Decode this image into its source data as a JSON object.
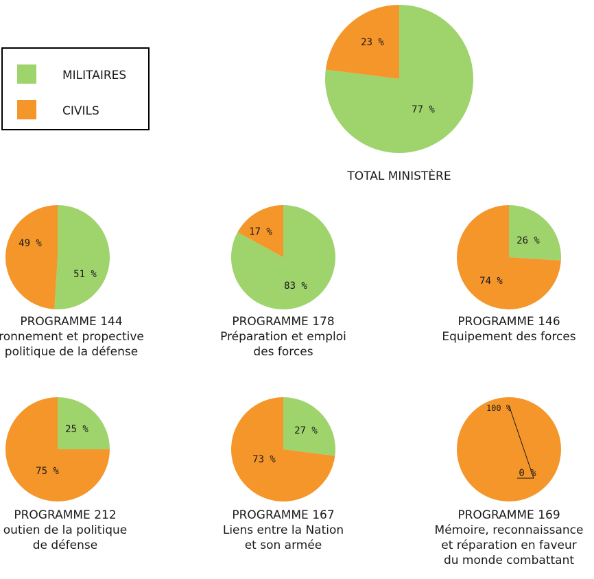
{
  "legend": {
    "items": [
      {
        "label": "MILITAIRES",
        "color": "#9fd36c"
      },
      {
        "label": "CIVILS",
        "color": "#f5962a"
      }
    ]
  },
  "chart_data": [
    {
      "type": "pie",
      "labels": [
        "MILITAIRES",
        "CIVILS"
      ],
      "values": [
        77,
        23
      ],
      "value_labels": [
        "77 %",
        "23 %"
      ],
      "caption": [
        "TOTAL MINISTÈRE"
      ]
    },
    {
      "type": "pie",
      "labels": [
        "MILITAIRES",
        "CIVILS"
      ],
      "values": [
        51,
        49
      ],
      "value_labels": [
        "51 %",
        "49 %"
      ],
      "caption": [
        "PROGRAMME 144",
        "ronnement et propective",
        "politique de la défense"
      ]
    },
    {
      "type": "pie",
      "labels": [
        "MILITAIRES",
        "CIVILS"
      ],
      "values": [
        83,
        17
      ],
      "value_labels": [
        "83 %",
        "17 %"
      ],
      "caption": [
        "PROGRAMME 178",
        "Préparation et emploi",
        "des forces"
      ]
    },
    {
      "type": "pie",
      "labels": [
        "MILITAIRES",
        "CIVILS"
      ],
      "values": [
        26,
        74
      ],
      "value_labels": [
        "26 %",
        "74 %"
      ],
      "caption": [
        "PROGRAMME 146",
        "Equipement des forces"
      ]
    },
    {
      "type": "pie",
      "labels": [
        "MILITAIRES",
        "CIVILS"
      ],
      "values": [
        25,
        75
      ],
      "value_labels": [
        "25 %",
        "75 %"
      ],
      "caption": [
        "PROGRAMME 212",
        "outien de la politique",
        "de défense"
      ]
    },
    {
      "type": "pie",
      "labels": [
        "MILITAIRES",
        "CIVILS"
      ],
      "values": [
        27,
        73
      ],
      "value_labels": [
        "27 %",
        "73 %"
      ],
      "caption": [
        "PROGRAMME 167",
        "Liens entre la Nation",
        "et son armée"
      ]
    },
    {
      "type": "pie",
      "labels": [
        "MILITAIRES",
        "CIVILS"
      ],
      "values": [
        0,
        100
      ],
      "value_labels": [
        "0 %",
        "100 %"
      ],
      "caption": [
        "PROGRAMME 169",
        "Mémoire, reconnaissance",
        "et réparation en faveur",
        "du monde combattant"
      ]
    }
  ]
}
